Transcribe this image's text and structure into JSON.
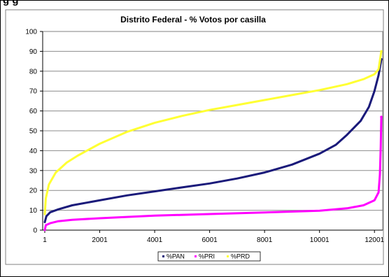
{
  "heading_fragment": "g  g",
  "chart_data": {
    "type": "line",
    "title": "Distrito Federal - % Votos por casilla",
    "xlabel": "",
    "ylabel": "",
    "ylim": [
      0,
      100
    ],
    "yticks": [
      0,
      10,
      20,
      30,
      40,
      50,
      60,
      70,
      80,
      90,
      100
    ],
    "xlim": [
      1,
      12250
    ],
    "xticks": [
      1,
      2001,
      4001,
      6001,
      8001,
      10001,
      12001
    ],
    "grid": "horizontal",
    "legend_position": "bottom",
    "series": [
      {
        "name": "%PAN",
        "color": "#1a1a7a",
        "x": [
          1,
          60,
          200,
          500,
          1000,
          2001,
          3001,
          4001,
          5001,
          6001,
          7001,
          8001,
          9001,
          10001,
          10600,
          11001,
          11500,
          11800,
          12001,
          12150,
          12250
        ],
        "y": [
          4,
          7,
          9,
          10.5,
          12.5,
          15,
          17.5,
          19.5,
          21.5,
          23.5,
          26,
          29,
          33,
          38.5,
          43,
          48,
          55,
          62,
          70,
          78,
          86
        ]
      },
      {
        "name": "%PRI",
        "color": "#ff00ff",
        "x": [
          1,
          40,
          200,
          500,
          1000,
          2001,
          4001,
          6001,
          8001,
          10001,
          11001,
          11600,
          12001,
          12150,
          12200,
          12230,
          12250
        ],
        "y": [
          0,
          2.5,
          3.5,
          4.5,
          5.2,
          6,
          7.3,
          8.1,
          8.9,
          9.8,
          11,
          12.5,
          15,
          19,
          28,
          42,
          57
        ]
      },
      {
        "name": "%PRD",
        "color": "#ffff33",
        "x": [
          1,
          40,
          150,
          400,
          800,
          1200,
          2001,
          3001,
          4001,
          5001,
          6001,
          7001,
          8001,
          9001,
          10001,
          11001,
          11600,
          12001,
          12150,
          12250
        ],
        "y": [
          8,
          16,
          23,
          29,
          34,
          37.5,
          43.5,
          49.5,
          54,
          57.5,
          60.5,
          63,
          65.5,
          68,
          70.5,
          73.5,
          76,
          78.5,
          81,
          90
        ]
      }
    ]
  }
}
